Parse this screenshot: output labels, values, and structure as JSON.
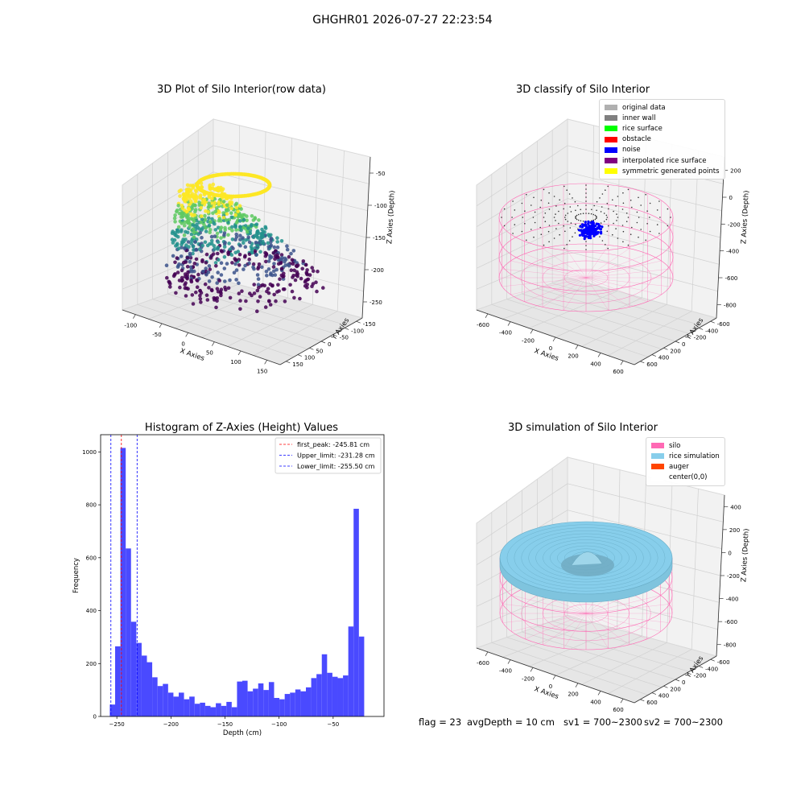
{
  "suptitle": "GHGHR01 2026-07-27 22:23:54",
  "footer": {
    "flag": "flag = 23",
    "avg_depth": "avgDepth = 10 cm",
    "sv1": "sv1 = 700~2300",
    "sv2": "sv2 = 700~2300"
  },
  "colors": {
    "points_gradient": [
      "#440154",
      "#3b528b",
      "#21918c",
      "#5ec962",
      "#fde725"
    ],
    "silo": "#ff69b4",
    "rice": "#87ceeb",
    "histogram": "#4a4aff"
  },
  "panels": {
    "raw": {
      "title": "3D Plot of Silo Interior(row data)",
      "xlabel": "X Axies",
      "ylabel": "Y Axies",
      "zlabel": "Z Axies (Depth)",
      "xticks": [
        "-100",
        "-50",
        "0",
        "50",
        "100",
        "150"
      ],
      "yticks": [
        "-150",
        "-100",
        "-50",
        "0",
        "50",
        "100",
        "150"
      ],
      "zticks": [
        "-50",
        "-100",
        "-150",
        "-200",
        "-250"
      ]
    },
    "classify": {
      "title": "3D classify of Silo Interior",
      "xlabel": "X Axies",
      "ylabel": "Y Axies",
      "zlabel": "Z Axies (Depth)",
      "xticks": [
        "-600",
        "-400",
        "-200",
        "0",
        "200",
        "400",
        "600"
      ],
      "yticks": [
        "-600",
        "-400",
        "-200",
        "0",
        "200",
        "400",
        "600"
      ],
      "zticks": [
        "200",
        "0",
        "-200",
        "-400",
        "-600",
        "-800"
      ],
      "legend": [
        {
          "label": "original data",
          "color": "#b0b0b0"
        },
        {
          "label": "inner wall",
          "color": "#808080"
        },
        {
          "label": "rice surface",
          "color": "#00ff00"
        },
        {
          "label": "obstacle",
          "color": "#ff0000"
        },
        {
          "label": "noise",
          "color": "#0000ff"
        },
        {
          "label": "interpolated rice surface",
          "color": "#800080"
        },
        {
          "label": "symmetric generated points",
          "color": "#ffff00"
        }
      ]
    },
    "simulation": {
      "title": "3D simulation of Silo Interior",
      "xlabel": "X Axies",
      "ylabel": "Y Axies",
      "zlabel": "Z Axies (Depth)",
      "xticks": [
        "-600",
        "-400",
        "-200",
        "0",
        "200",
        "400",
        "600"
      ],
      "yticks": [
        "-600",
        "-400",
        "-200",
        "0",
        "200",
        "400",
        "600"
      ],
      "zticks": [
        "400",
        "200",
        "0",
        "-200",
        "-400",
        "-600",
        "-800"
      ],
      "legend": [
        {
          "label": "silo",
          "color": "#ff69b4"
        },
        {
          "label": "rice simulation",
          "color": "#87ceeb"
        },
        {
          "label": "auger",
          "color": "#ff4500"
        },
        {
          "label": "center(0,0)",
          "color": "#ffffff"
        }
      ]
    }
  },
  "chart_data": [
    {
      "type": "bar",
      "title": "Histogram of Z-Axies (Height) Values",
      "xlabel": "Depth (cm)",
      "ylabel": "Frequency",
      "xlim": [
        -265,
        -3
      ],
      "ylim": [
        0,
        1065
      ],
      "xticks": [
        -250,
        -200,
        -150,
        -100,
        -50
      ],
      "yticks": [
        0,
        200,
        400,
        600,
        800,
        1000
      ],
      "bin_start": -256.5,
      "bin_width": 4.9,
      "values": [
        45,
        265,
        1015,
        635,
        358,
        278,
        230,
        205,
        148,
        115,
        123,
        90,
        75,
        90,
        65,
        75,
        48,
        52,
        40,
        35,
        50,
        40,
        55,
        35,
        132,
        135,
        95,
        105,
        125,
        100,
        130,
        70,
        65,
        85,
        90,
        102,
        95,
        110,
        145,
        160,
        235,
        165,
        150,
        145,
        155,
        340,
        785,
        302
      ],
      "vlines": [
        {
          "label": "first_peak: -245.81 cm",
          "x": -245.81,
          "color": "#ff0000"
        },
        {
          "label": "Upper_limit: -231.28 cm",
          "x": -231.28,
          "color": "#0000ff"
        },
        {
          "label": "Lower_limit: -255.50 cm",
          "x": -255.5,
          "color": "#0000ff"
        }
      ],
      "legend_position": "upper right",
      "grid": false
    }
  ]
}
